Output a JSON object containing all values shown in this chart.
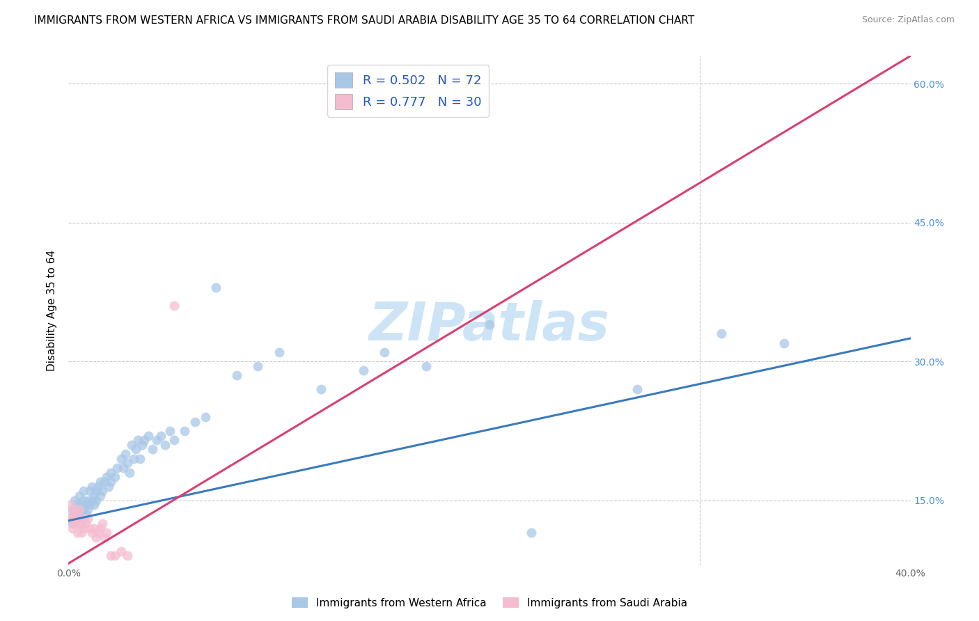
{
  "title": "IMMIGRANTS FROM WESTERN AFRICA VS IMMIGRANTS FROM SAUDI ARABIA DISABILITY AGE 35 TO 64 CORRELATION CHART",
  "source": "Source: ZipAtlas.com",
  "ylabel": "Disability Age 35 to 64",
  "xlim": [
    0.0,
    0.4
  ],
  "ylim": [
    0.08,
    0.63
  ],
  "xticks": [
    0.0,
    0.1,
    0.2,
    0.3,
    0.4
  ],
  "yticks": [
    0.15,
    0.3,
    0.45,
    0.6
  ],
  "ytick_labels": [
    "15.0%",
    "30.0%",
    "45.0%",
    "60.0%"
  ],
  "watermark": "ZIPatlas",
  "series": [
    {
      "name": "Immigrants from Western Africa",
      "R": 0.502,
      "N": 72,
      "color": "#a8c8e8",
      "line_color": "#3a7abf",
      "x": [
        0.001,
        0.002,
        0.002,
        0.003,
        0.003,
        0.004,
        0.004,
        0.005,
        0.005,
        0.006,
        0.006,
        0.007,
        0.007,
        0.007,
        0.008,
        0.008,
        0.009,
        0.009,
        0.01,
        0.01,
        0.011,
        0.011,
        0.012,
        0.012,
        0.013,
        0.013,
        0.014,
        0.015,
        0.015,
        0.016,
        0.017,
        0.018,
        0.019,
        0.02,
        0.02,
        0.022,
        0.023,
        0.025,
        0.026,
        0.027,
        0.028,
        0.029,
        0.03,
        0.031,
        0.032,
        0.033,
        0.034,
        0.035,
        0.036,
        0.038,
        0.04,
        0.042,
        0.044,
        0.046,
        0.048,
        0.05,
        0.055,
        0.06,
        0.065,
        0.07,
        0.08,
        0.09,
        0.1,
        0.12,
        0.14,
        0.15,
        0.17,
        0.2,
        0.22,
        0.27,
        0.31,
        0.34
      ],
      "y": [
        0.13,
        0.125,
        0.14,
        0.135,
        0.15,
        0.13,
        0.145,
        0.14,
        0.155,
        0.145,
        0.135,
        0.15,
        0.14,
        0.16,
        0.145,
        0.135,
        0.15,
        0.14,
        0.145,
        0.16,
        0.15,
        0.165,
        0.155,
        0.145,
        0.16,
        0.15,
        0.165,
        0.155,
        0.17,
        0.16,
        0.17,
        0.175,
        0.165,
        0.17,
        0.18,
        0.175,
        0.185,
        0.195,
        0.185,
        0.2,
        0.19,
        0.18,
        0.21,
        0.195,
        0.205,
        0.215,
        0.195,
        0.21,
        0.215,
        0.22,
        0.205,
        0.215,
        0.22,
        0.21,
        0.225,
        0.215,
        0.225,
        0.235,
        0.24,
        0.38,
        0.285,
        0.295,
        0.31,
        0.27,
        0.29,
        0.31,
        0.295,
        0.34,
        0.115,
        0.27,
        0.33,
        0.32
      ],
      "trend_x": [
        0.0,
        0.4
      ],
      "trend_y": [
        0.128,
        0.325
      ]
    },
    {
      "name": "Immigrants from Saudi Arabia",
      "R": 0.777,
      "N": 30,
      "color": "#f5bcd0",
      "line_color": "#d94070",
      "x": [
        0.001,
        0.001,
        0.002,
        0.002,
        0.003,
        0.003,
        0.004,
        0.004,
        0.005,
        0.005,
        0.006,
        0.006,
        0.007,
        0.007,
        0.008,
        0.009,
        0.01,
        0.011,
        0.012,
        0.013,
        0.014,
        0.015,
        0.016,
        0.017,
        0.018,
        0.02,
        0.022,
        0.025,
        0.028,
        0.05
      ],
      "y": [
        0.13,
        0.145,
        0.12,
        0.135,
        0.125,
        0.14,
        0.115,
        0.13,
        0.125,
        0.14,
        0.125,
        0.115,
        0.13,
        0.12,
        0.125,
        0.13,
        0.12,
        0.115,
        0.12,
        0.11,
        0.115,
        0.12,
        0.125,
        0.11,
        0.115,
        0.09,
        0.09,
        0.095,
        0.09,
        0.36
      ],
      "trend_x": [
        -0.005,
        0.4
      ],
      "trend_y": [
        0.075,
        0.63
      ]
    }
  ],
  "title_fontsize": 11,
  "axis_label_fontsize": 11,
  "tick_fontsize": 10,
  "watermark_fontsize": 55,
  "watermark_color": "#cce4f5",
  "grid_color": "#c8c8c8",
  "grid_linestyle": "--",
  "right_ytick_color": "#4a90d9",
  "scatter_size": 100,
  "scatter_alpha": 0.75,
  "line_width": 2.2
}
